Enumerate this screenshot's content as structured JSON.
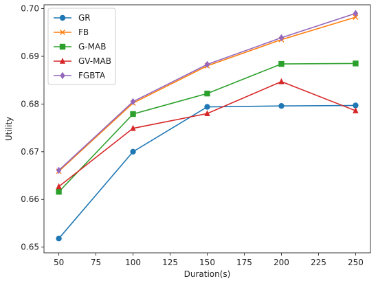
{
  "chart_data": {
    "type": "line",
    "title": "",
    "xlabel": "Duration(s)",
    "ylabel": "Utility",
    "x": [
      50,
      100,
      150,
      200,
      250
    ],
    "xlim": [
      40,
      260
    ],
    "ylim": [
      0.6488,
      0.7008
    ],
    "xticks": [
      50,
      75,
      100,
      125,
      150,
      175,
      200,
      225,
      250
    ],
    "yticks": [
      0.65,
      0.66,
      0.67,
      0.68,
      0.69,
      0.7
    ],
    "ytick_labels": [
      "0.65",
      "0.66",
      "0.67",
      "0.68",
      "0.69",
      "0.70"
    ],
    "grid": false,
    "legend_position": "top-left",
    "series": [
      {
        "name": "GR",
        "marker": "circle",
        "color": "#1f77b4",
        "values": [
          0.6518,
          0.67,
          0.6794,
          0.6796,
          0.6797
        ]
      },
      {
        "name": "FB",
        "marker": "x",
        "color": "#ff7f0e",
        "values": [
          0.6659,
          0.6802,
          0.688,
          0.6935,
          0.6982
        ]
      },
      {
        "name": "G-MAB",
        "marker": "square",
        "color": "#2ca02c",
        "values": [
          0.6616,
          0.6779,
          0.6822,
          0.6884,
          0.6885
        ]
      },
      {
        "name": "GV-MAB",
        "marker": "triangle",
        "color": "#d62728",
        "values": [
          0.6627,
          0.6749,
          0.678,
          0.6847,
          0.6786
        ]
      },
      {
        "name": "FGBTA",
        "marker": "diamond",
        "color": "#9467bd",
        "values": [
          0.6661,
          0.6805,
          0.6883,
          0.6939,
          0.699
        ]
      }
    ]
  }
}
